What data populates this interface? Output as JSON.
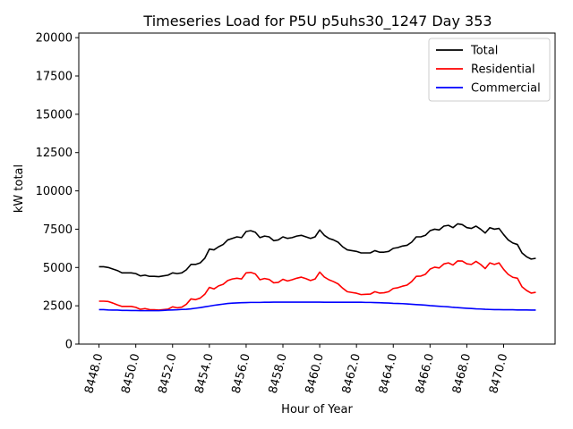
{
  "chart_data": {
    "type": "line",
    "title": "Timeseries Load for P5U p5uhs30_1247  Day 353",
    "xlabel": "Hour of Year",
    "ylabel": "kW total",
    "xlim": [
      8446.9,
      8472.8
    ],
    "ylim": [
      0,
      20300
    ],
    "x_ticks": [
      8448.0,
      8450.0,
      8452.0,
      8454.0,
      8456.0,
      8458.0,
      8460.0,
      8462.0,
      8464.0,
      8466.0,
      8468.0,
      8470.0
    ],
    "x_tick_labels": [
      "8448.0",
      "8450.0",
      "8452.0",
      "8454.0",
      "8456.0",
      "8458.0",
      "8460.0",
      "8462.0",
      "8464.0",
      "8466.0",
      "8468.0",
      "8470.0"
    ],
    "y_ticks": [
      0,
      2500,
      5000,
      7500,
      10000,
      12500,
      15000,
      17500,
      20000
    ],
    "y_tick_labels": [
      "0",
      "2500",
      "5000",
      "7500",
      "10000",
      "12500",
      "15000",
      "17500",
      "20000"
    ],
    "legend_position": "top-right",
    "x": [
      8448.0,
      8448.25,
      8448.5,
      8448.75,
      8449.0,
      8449.25,
      8449.5,
      8449.75,
      8450.0,
      8450.25,
      8450.5,
      8450.75,
      8451.0,
      8451.25,
      8451.5,
      8451.75,
      8452.0,
      8452.25,
      8452.5,
      8452.75,
      8453.0,
      8453.25,
      8453.5,
      8453.75,
      8454.0,
      8454.25,
      8454.5,
      8454.75,
      8455.0,
      8455.25,
      8455.5,
      8455.75,
      8456.0,
      8456.25,
      8456.5,
      8456.75,
      8457.0,
      8457.25,
      8457.5,
      8457.75,
      8458.0,
      8458.25,
      8458.5,
      8458.75,
      8459.0,
      8459.25,
      8459.5,
      8459.75,
      8460.0,
      8460.25,
      8460.5,
      8460.75,
      8461.0,
      8461.25,
      8461.5,
      8461.75,
      8462.0,
      8462.25,
      8462.5,
      8462.75,
      8463.0,
      8463.25,
      8463.5,
      8463.75,
      8464.0,
      8464.25,
      8464.5,
      8464.75,
      8465.0,
      8465.25,
      8465.5,
      8465.75,
      8466.0,
      8466.25,
      8466.5,
      8466.75,
      8467.0,
      8467.25,
      8467.5,
      8467.75,
      8468.0,
      8468.25,
      8468.5,
      8468.75,
      8469.0,
      8469.25,
      8469.5,
      8469.75,
      8470.0,
      8470.25,
      8470.5,
      8470.75,
      8471.0,
      8471.25,
      8471.5,
      8471.75
    ],
    "series": [
      {
        "name": "Total",
        "color": "#000000",
        "values": [
          5050,
          5050,
          5000,
          4900,
          4800,
          4650,
          4650,
          4650,
          4600,
          4450,
          4500,
          4420,
          4420,
          4400,
          4450,
          4500,
          4650,
          4600,
          4650,
          4850,
          5200,
          5200,
          5300,
          5600,
          6200,
          6150,
          6350,
          6500,
          6800,
          6900,
          7000,
          6950,
          7350,
          7400,
          7300,
          6950,
          7050,
          7000,
          6750,
          6800,
          7000,
          6900,
          6950,
          7050,
          7100,
          7000,
          6900,
          7000,
          7450,
          7100,
          6900,
          6800,
          6650,
          6350,
          6150,
          6100,
          6050,
          5950,
          5950,
          5950,
          6100,
          6000,
          6000,
          6050,
          6250,
          6300,
          6400,
          6450,
          6650,
          7000,
          7000,
          7100,
          7400,
          7500,
          7450,
          7700,
          7750,
          7600,
          7850,
          7800,
          7600,
          7550,
          7700,
          7500,
          7250,
          7600,
          7500,
          7550,
          7150,
          6800,
          6600,
          6500,
          5950,
          5700,
          5550,
          5600
        ]
      },
      {
        "name": "Residential",
        "color": "#ff0000",
        "values": [
          2800,
          2800,
          2780,
          2680,
          2560,
          2460,
          2460,
          2460,
          2400,
          2270,
          2320,
          2250,
          2240,
          2220,
          2250,
          2280,
          2430,
          2370,
          2410,
          2600,
          2950,
          2900,
          3000,
          3250,
          3700,
          3600,
          3800,
          3900,
          4150,
          4250,
          4300,
          4250,
          4650,
          4680,
          4580,
          4200,
          4280,
          4220,
          4000,
          4030,
          4230,
          4120,
          4200,
          4300,
          4370,
          4270,
          4150,
          4250,
          4700,
          4380,
          4200,
          4080,
          3930,
          3650,
          3420,
          3370,
          3320,
          3230,
          3250,
          3260,
          3420,
          3330,
          3350,
          3420,
          3630,
          3680,
          3780,
          3850,
          4080,
          4420,
          4440,
          4560,
          4890,
          5020,
          4970,
          5230,
          5300,
          5160,
          5430,
          5420,
          5240,
          5200,
          5400,
          5200,
          4930,
          5300,
          5200,
          5300,
          4880,
          4550,
          4360,
          4300,
          3740,
          3500,
          3330,
          3380
        ]
      },
      {
        "name": "Commercial",
        "color": "#0000ff",
        "values": [
          2250,
          2250,
          2230,
          2220,
          2220,
          2200,
          2200,
          2190,
          2190,
          2180,
          2180,
          2180,
          2180,
          2180,
          2200,
          2220,
          2230,
          2240,
          2260,
          2270,
          2300,
          2340,
          2380,
          2430,
          2480,
          2530,
          2570,
          2610,
          2650,
          2670,
          2690,
          2700,
          2710,
          2720,
          2720,
          2720,
          2730,
          2730,
          2740,
          2740,
          2740,
          2740,
          2740,
          2740,
          2740,
          2740,
          2740,
          2740,
          2740,
          2730,
          2730,
          2730,
          2730,
          2730,
          2730,
          2730,
          2730,
          2730,
          2720,
          2720,
          2710,
          2700,
          2690,
          2680,
          2660,
          2650,
          2640,
          2620,
          2600,
          2580,
          2560,
          2540,
          2510,
          2490,
          2470,
          2450,
          2430,
          2400,
          2380,
          2360,
          2340,
          2320,
          2300,
          2290,
          2270,
          2260,
          2250,
          2250,
          2240,
          2240,
          2240,
          2230,
          2230,
          2230,
          2220,
          2220
        ]
      }
    ]
  }
}
